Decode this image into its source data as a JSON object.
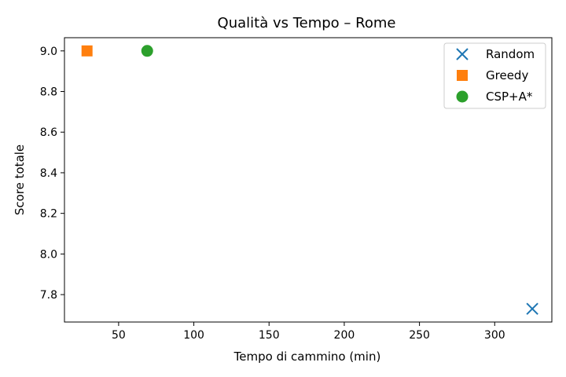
{
  "chart_data": {
    "type": "scatter",
    "title": "Qualità vs Tempo – Rome",
    "xlabel": "Tempo di cammino (min)",
    "ylabel": "Score totale",
    "xlim": [
      14,
      338
    ],
    "ylim": [
      7.665,
      9.065
    ],
    "xticks": [
      50,
      100,
      150,
      200,
      250,
      300
    ],
    "yticks": [
      7.8,
      8.0,
      8.2,
      8.4,
      8.6,
      8.8,
      9.0
    ],
    "grid": false,
    "legend_position": "top-right",
    "series": [
      {
        "name": "Random",
        "marker": "x",
        "color": "#1f77b4",
        "points": [
          {
            "x": 325,
            "y": 7.73
          }
        ]
      },
      {
        "name": "Greedy",
        "marker": "square",
        "color": "#ff7f0e",
        "points": [
          {
            "x": 29,
            "y": 9.0
          }
        ]
      },
      {
        "name": "CSP+A*",
        "marker": "circle",
        "color": "#2ca02c",
        "points": [
          {
            "x": 69,
            "y": 9.0
          }
        ]
      }
    ]
  }
}
